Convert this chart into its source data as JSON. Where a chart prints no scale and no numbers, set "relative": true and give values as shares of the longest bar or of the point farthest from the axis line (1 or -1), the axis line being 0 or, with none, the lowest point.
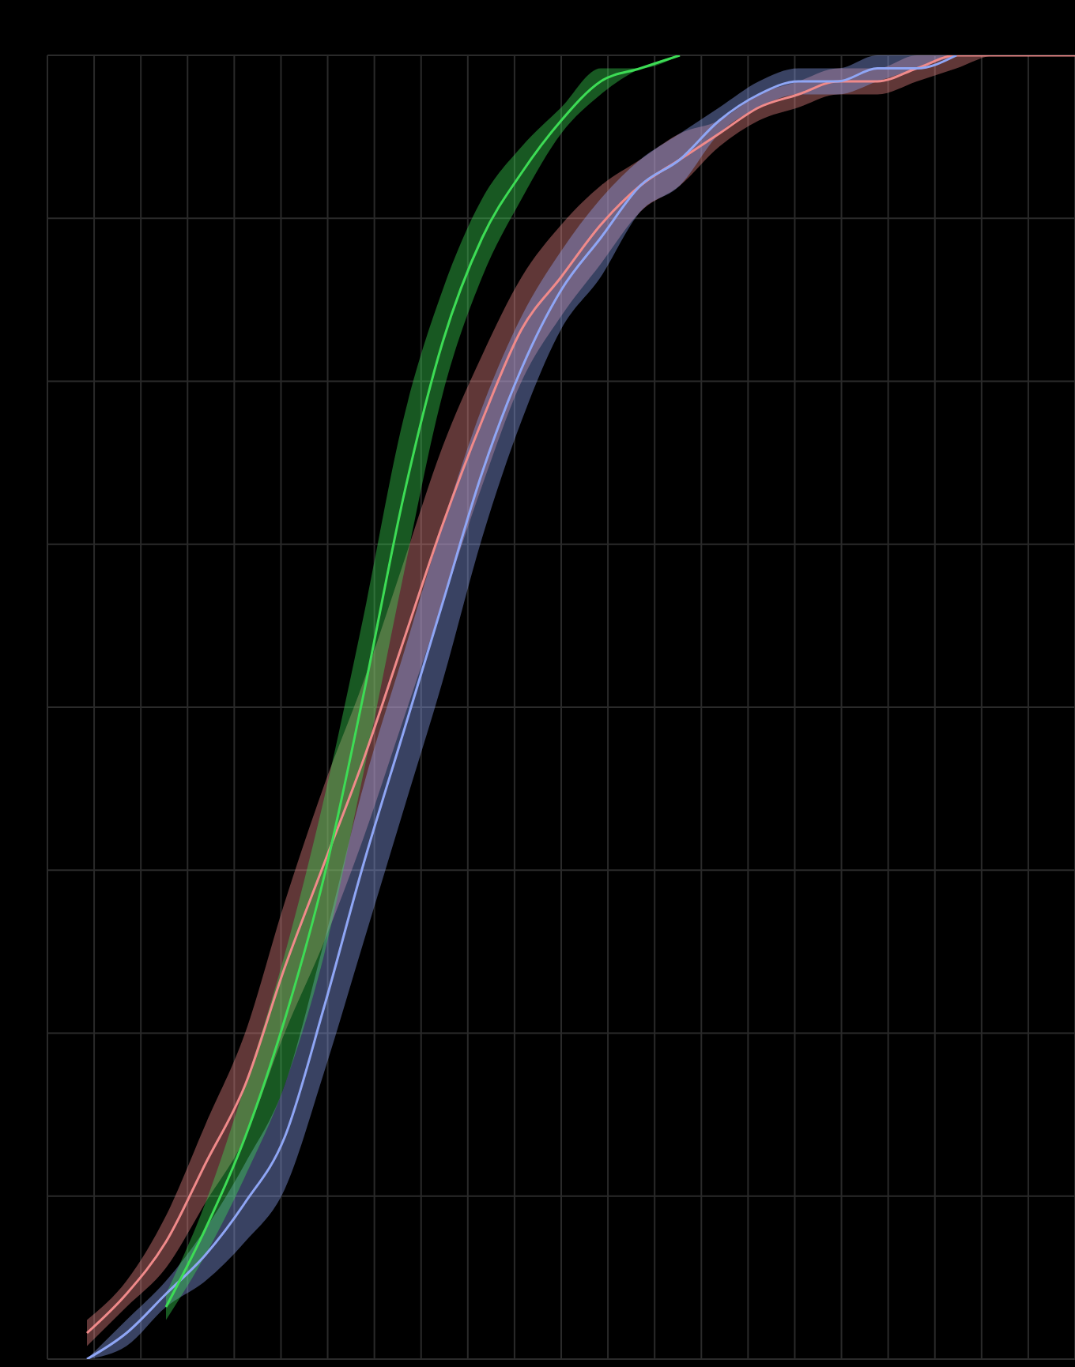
{
  "chart_data": {
    "type": "line",
    "relative": true,
    "grid": true,
    "categories": [
      null,
      null,
      null,
      null,
      null,
      null,
      null,
      null,
      null,
      null,
      null,
      null,
      null,
      null,
      null,
      null,
      null,
      null,
      null,
      null,
      null,
      null,
      null,
      null,
      null,
      null,
      null
    ],
    "series": [
      {
        "color": "#f08a8a",
        "values": [
          null,
          0.02,
          0.05,
          0.09,
          0.15,
          0.21,
          0.3,
          0.38,
          0.46,
          0.55,
          0.64,
          0.72,
          0.79,
          0.83,
          0.87,
          0.9,
          0.92,
          0.94,
          0.96,
          0.97,
          0.98,
          0.98,
          0.99,
          1.0,
          1.0,
          1.0,
          1.0
        ],
        "lower": [
          null,
          0.01,
          0.04,
          0.07,
          0.12,
          0.17,
          0.25,
          0.32,
          0.4,
          0.49,
          0.58,
          0.67,
          0.75,
          0.8,
          0.84,
          0.88,
          0.9,
          0.93,
          0.95,
          0.96,
          0.97,
          0.97,
          0.98,
          0.99,
          1.0,
          1.0,
          1.0
        ],
        "upper": [
          null,
          0.03,
          0.06,
          0.11,
          0.18,
          0.25,
          0.35,
          0.44,
          0.52,
          0.61,
          0.7,
          0.77,
          0.83,
          0.87,
          0.9,
          0.92,
          0.94,
          0.95,
          0.97,
          0.98,
          0.99,
          0.99,
          1.0,
          1.0,
          1.0,
          1.0,
          1.0
        ]
      },
      {
        "color": "#8fa6f5",
        "values": [
          null,
          0.0,
          0.02,
          0.05,
          0.08,
          0.12,
          0.17,
          0.27,
          0.38,
          0.48,
          0.58,
          0.68,
          0.76,
          0.82,
          0.86,
          0.9,
          0.92,
          0.95,
          0.97,
          0.98,
          0.98,
          0.99,
          0.99,
          1.0,
          null,
          null,
          null
        ],
        "lower": [
          null,
          0.0,
          0.01,
          0.04,
          0.06,
          0.09,
          0.13,
          0.22,
          0.32,
          0.42,
          0.52,
          0.63,
          0.72,
          0.79,
          0.83,
          0.88,
          0.9,
          0.94,
          0.96,
          0.97,
          0.97,
          0.98,
          0.99,
          1.0,
          null,
          null,
          null
        ],
        "upper": [
          null,
          0.0,
          0.03,
          0.06,
          0.1,
          0.15,
          0.21,
          0.32,
          0.44,
          0.54,
          0.64,
          0.73,
          0.8,
          0.85,
          0.89,
          0.92,
          0.94,
          0.96,
          0.98,
          0.99,
          0.99,
          1.0,
          1.0,
          1.0,
          null,
          null,
          null
        ]
      },
      {
        "color": "#3ddc55",
        "values": [
          null,
          null,
          null,
          0.04,
          0.1,
          0.17,
          0.26,
          0.37,
          0.51,
          0.66,
          0.78,
          0.86,
          0.91,
          0.95,
          0.98,
          0.99,
          1.0,
          null,
          null,
          null,
          null,
          null,
          null,
          null,
          null,
          null,
          null
        ],
        "lower": [
          null,
          null,
          null,
          0.03,
          0.08,
          0.14,
          0.21,
          0.31,
          0.45,
          0.6,
          0.74,
          0.83,
          0.89,
          0.94,
          0.97,
          0.99,
          1.0,
          null,
          null,
          null,
          null,
          null,
          null,
          null,
          null,
          null,
          null
        ],
        "upper": [
          null,
          null,
          null,
          0.05,
          0.12,
          0.21,
          0.31,
          0.43,
          0.57,
          0.72,
          0.82,
          0.89,
          0.93,
          0.96,
          0.99,
          0.99,
          1.0,
          null,
          null,
          null,
          null,
          null,
          null,
          null,
          null,
          null,
          null
        ]
      }
    ]
  }
}
